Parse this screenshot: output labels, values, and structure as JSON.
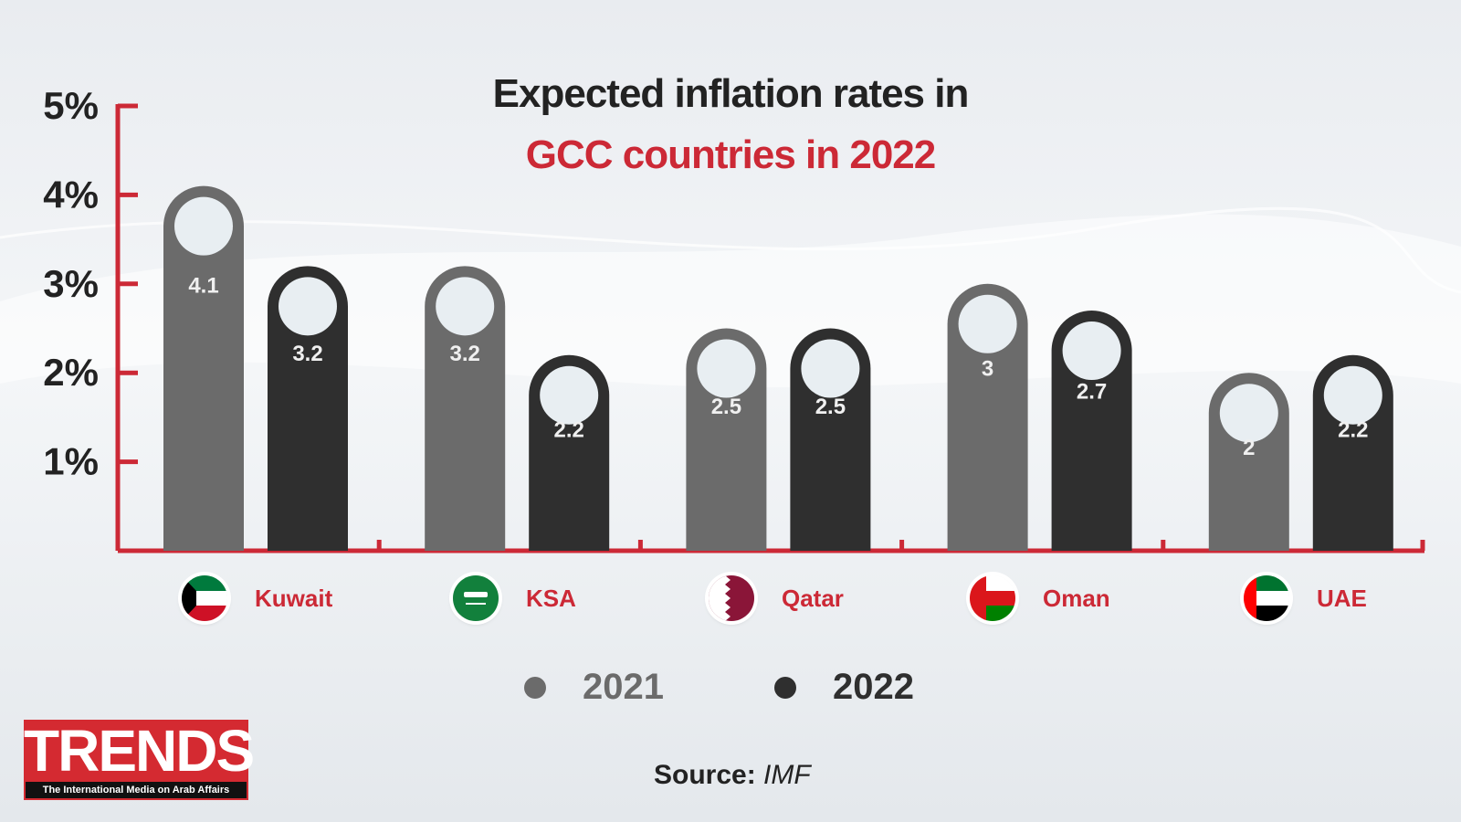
{
  "title_line1": "Expected inflation rates in",
  "title_line2": "GCC countries in 2022",
  "colors": {
    "accent": "#cc2936",
    "series_2021": "#6b6b6b",
    "series_2022": "#2f2f2f",
    "axis": "#cc2936",
    "hole": "#e8eef2"
  },
  "chart_data": {
    "type": "bar",
    "title": "Expected inflation rates in GCC countries in 2022",
    "categories": [
      "Kuwait",
      "KSA",
      "Qatar",
      "Oman",
      "UAE"
    ],
    "series": [
      {
        "name": "2021",
        "values": [
          4.1,
          3.2,
          2.5,
          3,
          2
        ]
      },
      {
        "name": "2022",
        "values": [
          3.2,
          2.2,
          2.5,
          2.7,
          2.2
        ]
      }
    ],
    "value_labels": [
      [
        "4.1",
        "3.2",
        "2.5",
        "3",
        "2"
      ],
      [
        "3.2",
        "2.2",
        "2.5",
        "2.7",
        "2.2"
      ]
    ],
    "y_ticks": [
      "1%",
      "2%",
      "3%",
      "4%",
      "5%"
    ],
    "ylim": [
      0,
      5
    ],
    "grid": false,
    "legend_position": "bottom"
  },
  "legend": {
    "label_2021": "2021",
    "label_2022": "2022"
  },
  "flags": [
    "kuwait-flag-icon",
    "saudi-flag-icon",
    "qatar-flag-icon",
    "oman-flag-icon",
    "uae-flag-icon"
  ],
  "source": {
    "label": "Source:",
    "value": "IMF"
  },
  "logo": {
    "name": "TRENDS",
    "tagline": "The International Media on Arab Affairs"
  }
}
